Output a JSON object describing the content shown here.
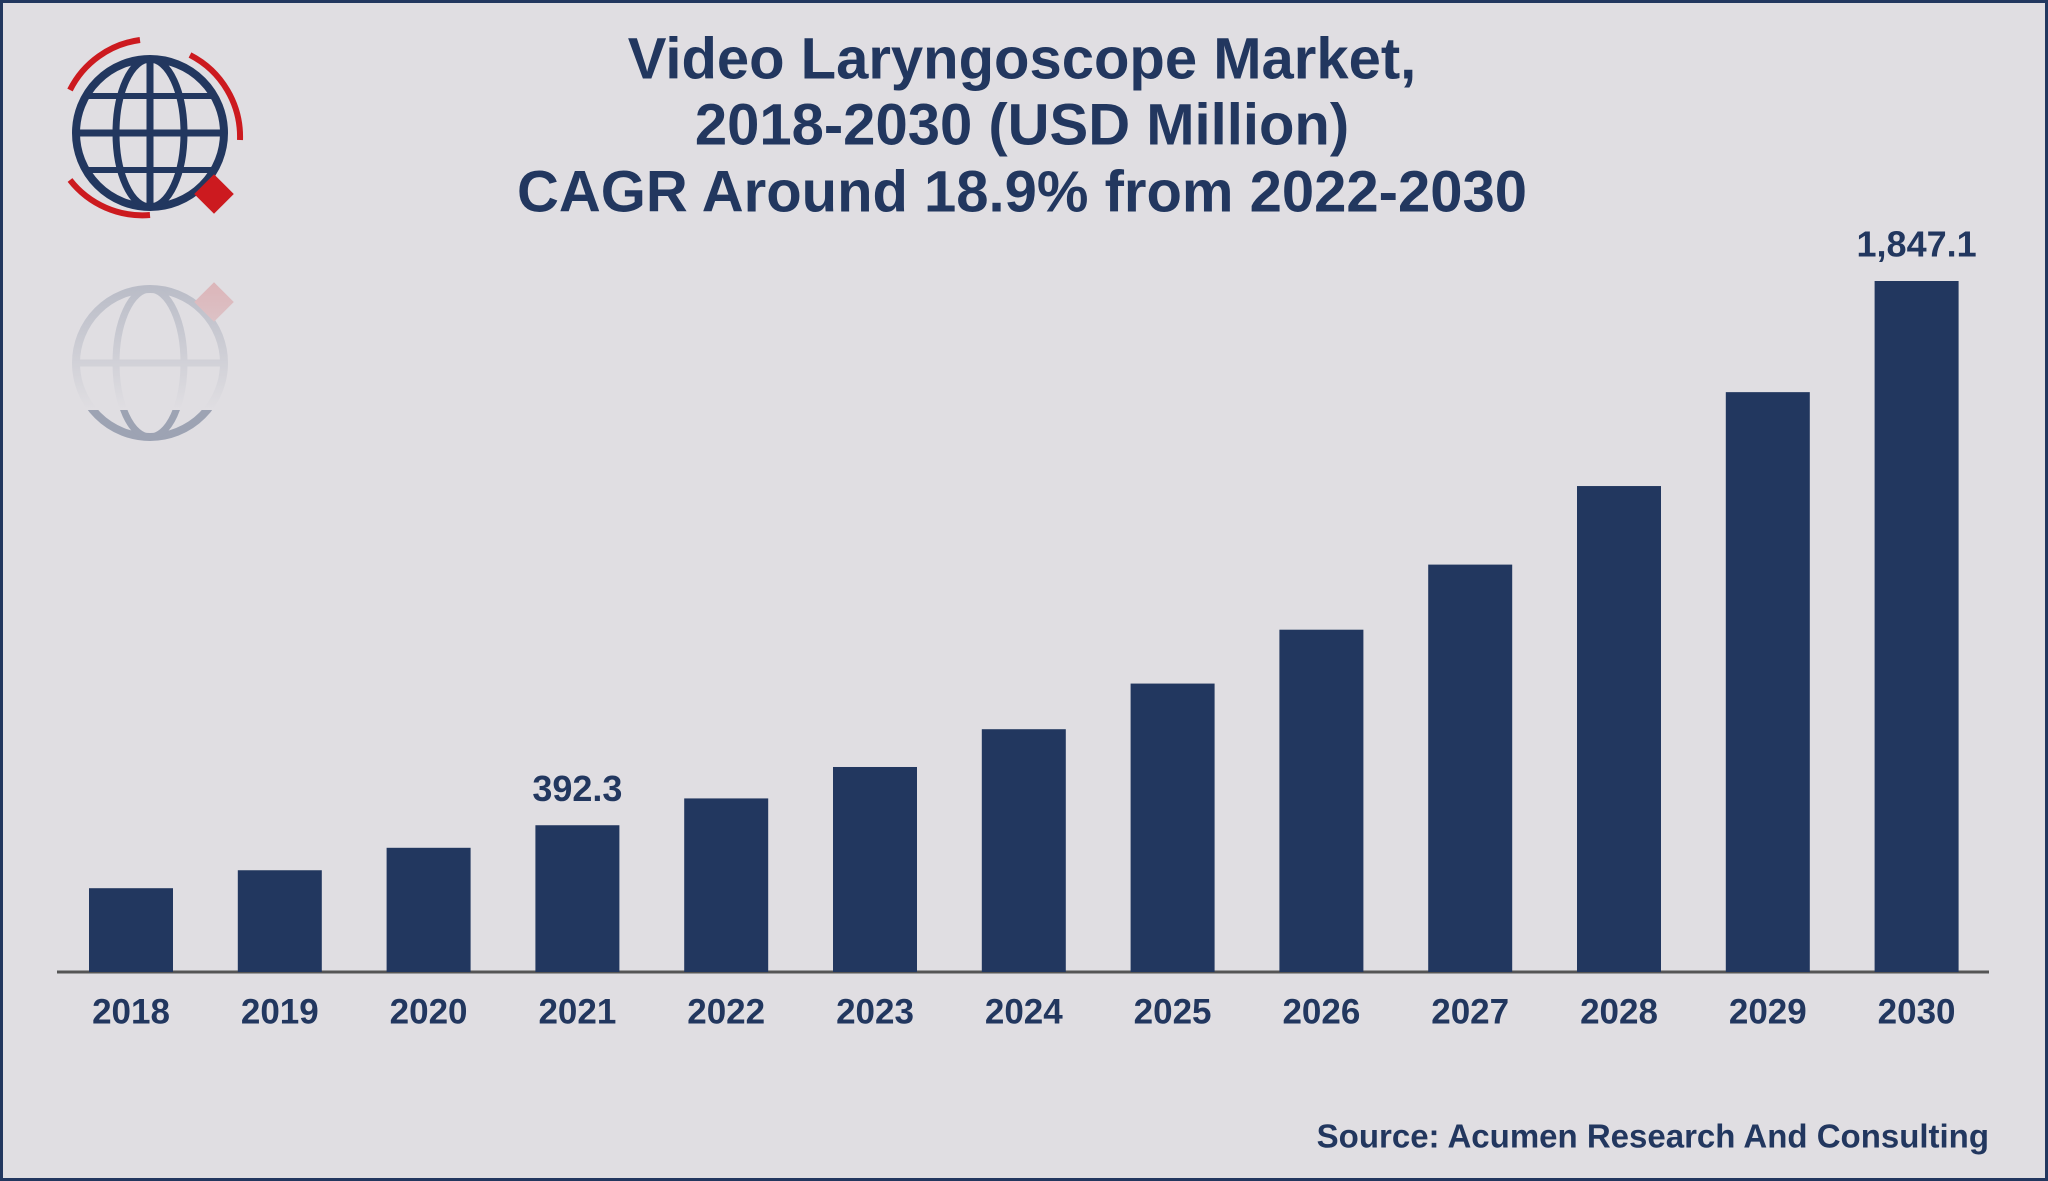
{
  "chart_data": {
    "type": "bar",
    "title": [
      "Video Laryngoscope Market,",
      "2018-2030 (USD Million)"
    ],
    "subtitle": "CAGR Around 18.9% from 2022-2030",
    "categories": [
      "2018",
      "2019",
      "2020",
      "2021",
      "2022",
      "2023",
      "2024",
      "2025",
      "2026",
      "2027",
      "2028",
      "2029",
      "2030"
    ],
    "values": [
      224,
      272,
      332,
      392.3,
      464,
      548,
      649,
      771,
      915,
      1089,
      1299,
      1550,
      1847.1
    ],
    "value_labels": [
      null,
      null,
      null,
      "392.3",
      null,
      null,
      null,
      null,
      null,
      null,
      null,
      null,
      "1,847.1"
    ],
    "color": "#22375f",
    "source": "Source: Acumen Research And Consulting"
  }
}
